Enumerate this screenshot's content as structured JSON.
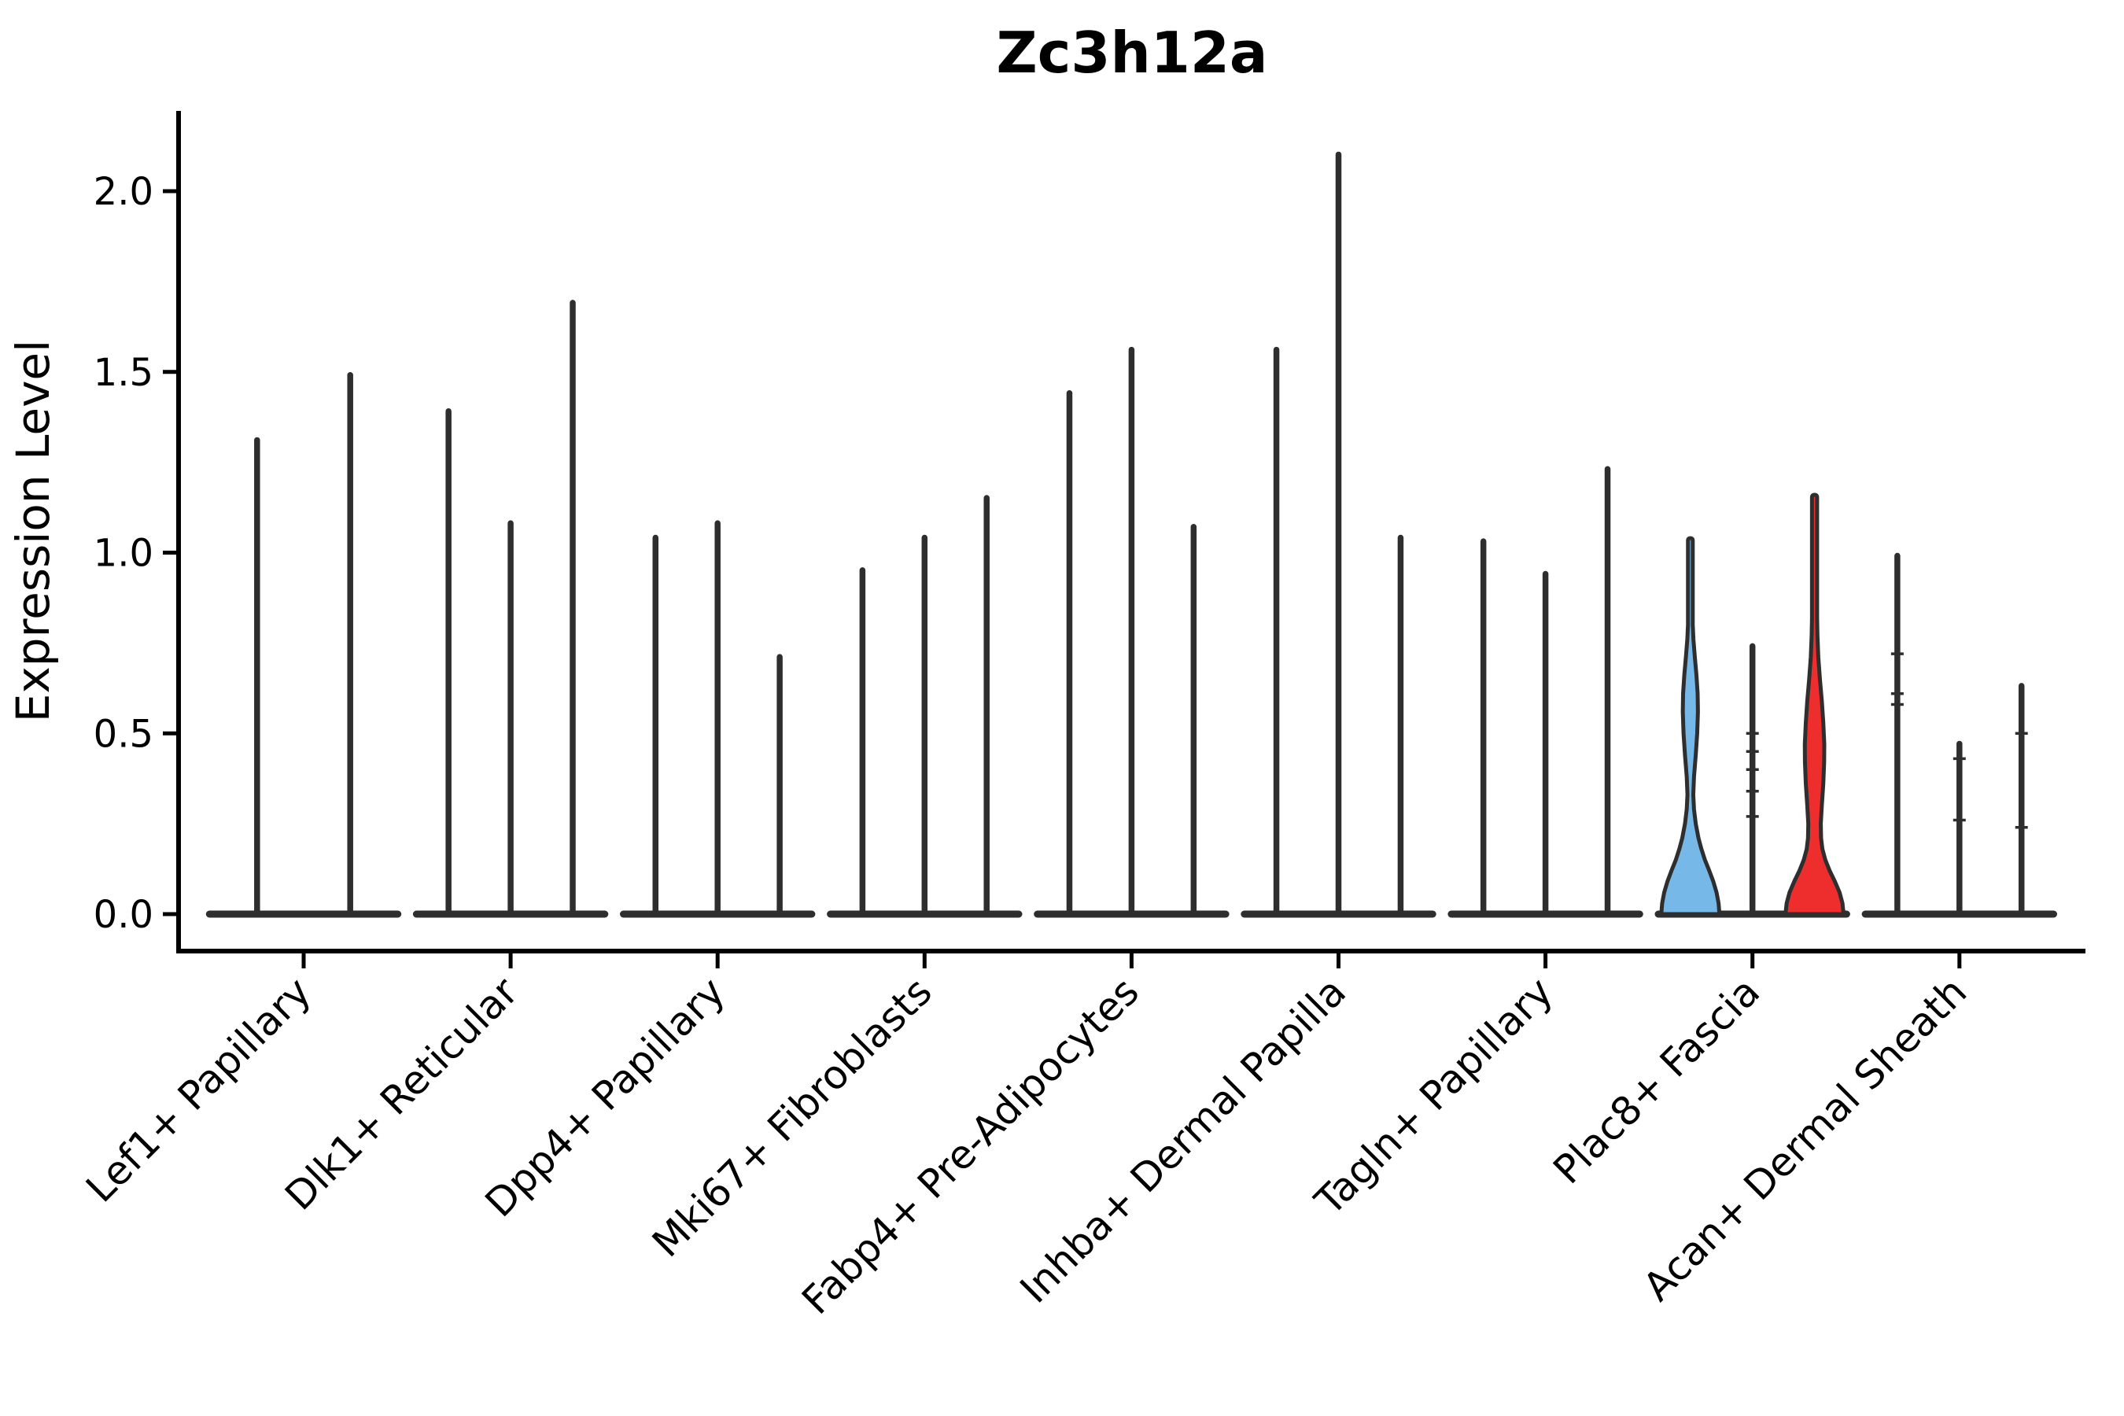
{
  "chart_data": {
    "type": "violin",
    "title": "Zc3h12a",
    "ylabel": "Expression Level",
    "xlabel": "",
    "ylim": [
      -0.1,
      2.22
    ],
    "yticks": [
      0.0,
      0.5,
      1.0,
      1.5,
      2.0
    ],
    "ytick_labels": [
      "0.0",
      "0.5",
      "1.0",
      "1.5",
      "2.0"
    ],
    "grid": "off",
    "legend": "none",
    "colors": {
      "edge": "#2e2e2e",
      "axis": "#000000",
      "highlight_blue": "#76b9e8",
      "highlight_red": "#ee2d2d",
      "background": "#ffffff"
    },
    "group_width_fraction": 0.9,
    "categories": [
      {
        "label": "Lef1+ Papillary",
        "violins": [
          {
            "max": 1.32,
            "style": "line"
          },
          {
            "max": 1.5,
            "style": "line"
          }
        ]
      },
      {
        "label": "Dlk1+ Reticular",
        "violins": [
          {
            "max": 1.4,
            "style": "line"
          },
          {
            "max": 1.09,
            "style": "line"
          },
          {
            "max": 1.7,
            "style": "line"
          }
        ]
      },
      {
        "label": "Dpp4+ Papillary",
        "violins": [
          {
            "max": 1.05,
            "style": "line"
          },
          {
            "max": 1.09,
            "style": "line"
          },
          {
            "max": 0.72,
            "style": "line"
          }
        ]
      },
      {
        "label": "Mki67+ Fibroblasts",
        "violins": [
          {
            "max": 0.96,
            "style": "line"
          },
          {
            "max": 1.05,
            "style": "line"
          },
          {
            "max": 1.16,
            "style": "line"
          }
        ]
      },
      {
        "label": "Fabp4+ Pre-Adipocytes",
        "violins": [
          {
            "max": 1.45,
            "style": "line"
          },
          {
            "max": 1.57,
            "style": "line"
          },
          {
            "max": 1.08,
            "style": "line"
          }
        ]
      },
      {
        "label": "Inhba+ Dermal Papilla",
        "violins": [
          {
            "max": 1.57,
            "style": "line"
          },
          {
            "max": 2.11,
            "style": "line"
          },
          {
            "max": 1.05,
            "style": "line"
          }
        ]
      },
      {
        "label": "Tagln+ Papillary",
        "violins": [
          {
            "max": 1.04,
            "style": "line"
          },
          {
            "max": 0.95,
            "style": "line"
          },
          {
            "max": 1.24,
            "style": "line"
          }
        ]
      },
      {
        "label": "Plac8+ Fascia",
        "violins": [
          {
            "max": 1.04,
            "style": "filled",
            "fill": "#76b9e8",
            "profile": [
              [
                0.0,
                1.0
              ],
              [
                0.03,
                0.97
              ],
              [
                0.06,
                0.9
              ],
              [
                0.09,
                0.79
              ],
              [
                0.12,
                0.65
              ],
              [
                0.15,
                0.5
              ],
              [
                0.18,
                0.38
              ],
              [
                0.21,
                0.28
              ],
              [
                0.25,
                0.185
              ],
              [
                0.29,
                0.125
              ],
              [
                0.33,
                0.1
              ],
              [
                0.38,
                0.125
              ],
              [
                0.44,
                0.185
              ],
              [
                0.5,
                0.235
              ],
              [
                0.56,
                0.26
              ],
              [
                0.61,
                0.25
              ],
              [
                0.66,
                0.21
              ],
              [
                0.71,
                0.155
              ],
              [
                0.76,
                0.105
              ],
              [
                0.8,
                0.082
              ]
            ]
          },
          {
            "max": 0.75,
            "style": "line",
            "marks": [
              0.27,
              0.34,
              0.4,
              0.45,
              0.5
            ]
          },
          {
            "max": 1.16,
            "style": "filled",
            "fill": "#ee2d2d",
            "profile": [
              [
                0.0,
                1.0
              ],
              [
                0.03,
                0.96
              ],
              [
                0.06,
                0.86
              ],
              [
                0.09,
                0.7
              ],
              [
                0.12,
                0.52
              ],
              [
                0.15,
                0.37
              ],
              [
                0.18,
                0.27
              ],
              [
                0.21,
                0.225
              ],
              [
                0.25,
                0.215
              ],
              [
                0.3,
                0.25
              ],
              [
                0.36,
                0.3
              ],
              [
                0.42,
                0.33
              ],
              [
                0.47,
                0.335
              ],
              [
                0.53,
                0.3
              ],
              [
                0.59,
                0.25
              ],
              [
                0.65,
                0.185
              ],
              [
                0.71,
                0.13
              ],
              [
                0.77,
                0.1
              ],
              [
                0.82,
                0.088
              ]
            ]
          }
        ]
      },
      {
        "label": "Acan+ Dermal Sheath",
        "violins": [
          {
            "max": 1.0,
            "style": "line",
            "marks": [
              0.58,
              0.61,
              0.72
            ]
          },
          {
            "max": 0.48,
            "style": "line",
            "marks": [
              0.26,
              0.43
            ]
          },
          {
            "max": 0.64,
            "style": "line",
            "marks": [
              0.24,
              0.5
            ]
          }
        ]
      }
    ]
  }
}
